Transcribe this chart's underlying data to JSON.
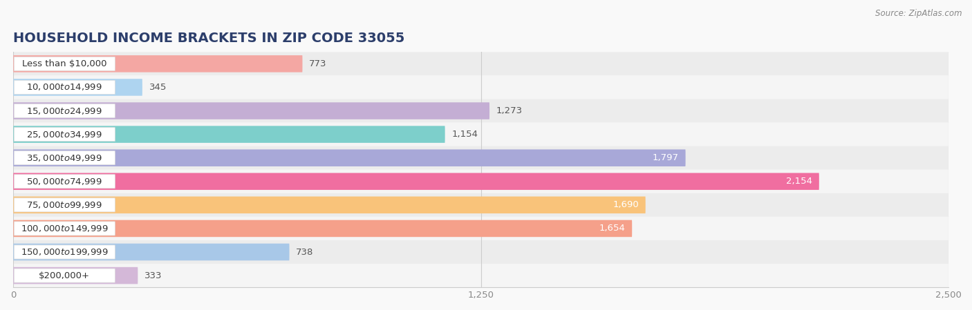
{
  "title": "Household Income Brackets in Zip Code 33055",
  "source": "Source: ZipAtlas.com",
  "categories": [
    "Less than $10,000",
    "$10,000 to $14,999",
    "$15,000 to $24,999",
    "$25,000 to $34,999",
    "$35,000 to $49,999",
    "$50,000 to $74,999",
    "$75,000 to $99,999",
    "$100,000 to $149,999",
    "$150,000 to $199,999",
    "$200,000+"
  ],
  "values": [
    773,
    345,
    1273,
    1154,
    1797,
    2154,
    1690,
    1654,
    738,
    333
  ],
  "bar_colors": [
    "#f4a7a3",
    "#aed4f0",
    "#c4aed4",
    "#7dcfcb",
    "#a8a8d8",
    "#f06ea0",
    "#f9c37a",
    "#f5a08a",
    "#a8c8e8",
    "#d4b8d8"
  ],
  "row_bg_color": "#ececec",
  "row_alt_bg_color": "#f5f5f5",
  "label_pill_color": "#ffffff",
  "xlim": [
    0,
    2500
  ],
  "xticks": [
    0,
    1250,
    2500
  ],
  "bar_height": 0.72,
  "label_fontsize": 9.5,
  "title_fontsize": 14,
  "value_inside_color": "#ffffff",
  "value_outside_color": "#555555",
  "background_color": "#f9f9f9",
  "inside_threshold": 1500
}
